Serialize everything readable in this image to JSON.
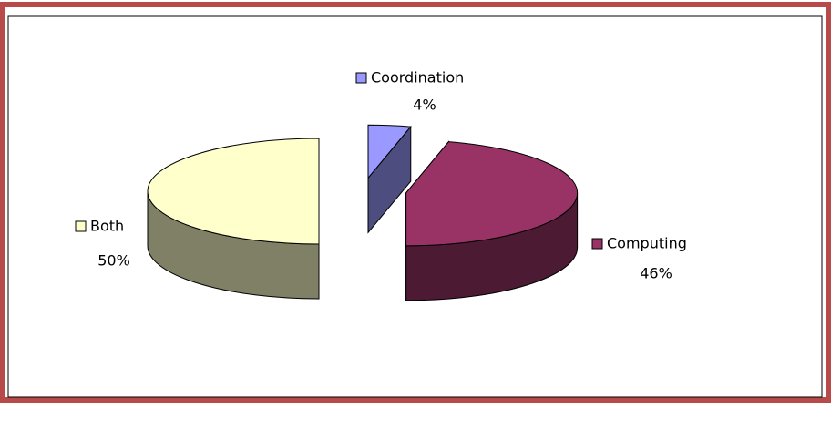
{
  "chart_data": {
    "type": "pie",
    "categories": [
      "Coordination",
      "Computing",
      "Both"
    ],
    "values": [
      4,
      46,
      50
    ],
    "value_labels": [
      "4%",
      "46%",
      "50%"
    ],
    "colors": [
      "#9999ff",
      "#993366",
      "#ffffcc"
    ]
  }
}
